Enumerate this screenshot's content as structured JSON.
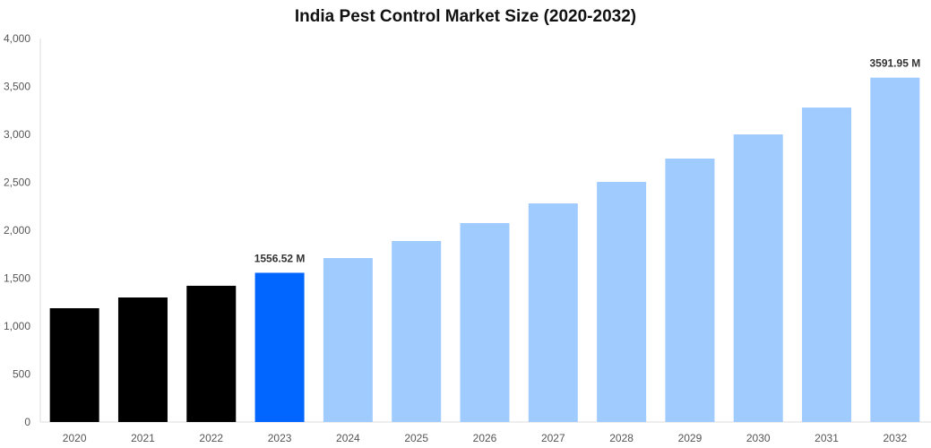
{
  "chart_data": {
    "type": "bar",
    "title": "India Pest Control Market Size (2020-2032)",
    "xlabel": "",
    "ylabel": "",
    "ylim": [
      0,
      4000
    ],
    "yticks": [
      "0",
      "500",
      "1,000",
      "1,500",
      "2,000",
      "2,500",
      "3,000",
      "3,500",
      "4,000"
    ],
    "ytick_values": [
      0,
      500,
      1000,
      1500,
      2000,
      2500,
      3000,
      3500,
      4000
    ],
    "grid": false,
    "categories": [
      "2020",
      "2021",
      "2022",
      "2023",
      "2024",
      "2025",
      "2026",
      "2027",
      "2028",
      "2029",
      "2030",
      "2031",
      "2032"
    ],
    "values": [
      1187,
      1299,
      1421,
      1556.52,
      1710,
      1888,
      2075,
      2280,
      2505,
      2748,
      3000,
      3280,
      3591.95
    ],
    "bar_colors": [
      "#000000",
      "#000000",
      "#000000",
      "#0066ff",
      "#a0cbff",
      "#a0cbff",
      "#a0cbff",
      "#a0cbff",
      "#a0cbff",
      "#a0cbff",
      "#a0cbff",
      "#a0cbff",
      "#a0cbff"
    ],
    "data_labels": [
      {
        "category": "2023",
        "text": "1556.52 M"
      },
      {
        "category": "2032",
        "text": "3591.95 M"
      }
    ]
  }
}
